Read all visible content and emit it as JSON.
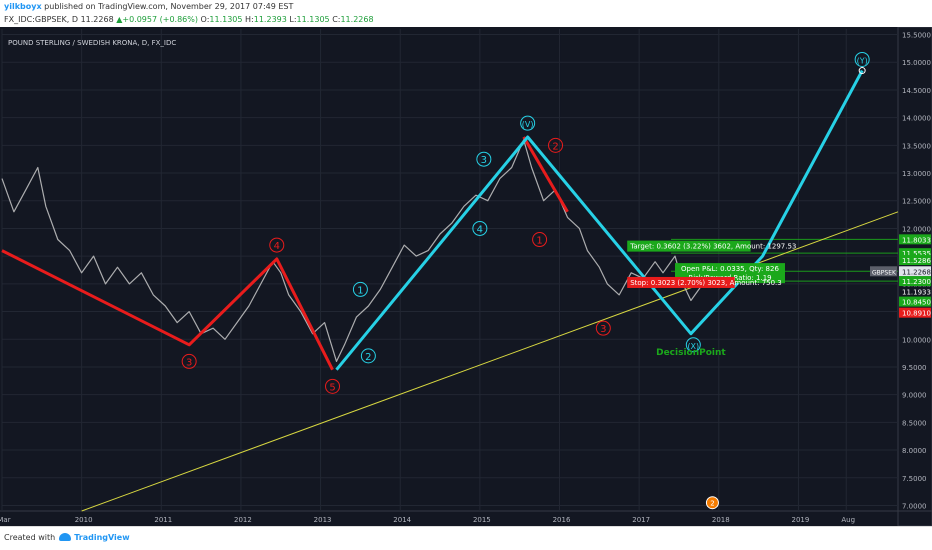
{
  "header": {
    "author": "yilkboyx",
    "published": "published on TradingView.com, November 29, 2017 07:49 EST",
    "symbol": "FX_IDC:GBPSEK, D",
    "last": "11.2268",
    "change": "+0.0957 (+0.86%)",
    "o_label": "O:",
    "o": "11.1305",
    "h_label": "H:",
    "h": "11.2393",
    "l_label": "L:",
    "l": "11.1305",
    "c_label": "C:",
    "c": "11.2268"
  },
  "footer": {
    "created_with": "Created with",
    "brand": "TradingView"
  },
  "colors": {
    "background": "#131722",
    "grid": "#222733",
    "price_line": "#c8c8c8",
    "cyan": "#27d1e6",
    "red": "#e81c1c",
    "trend": "#d7d741",
    "green": "#1ba81b"
  },
  "chart_data": {
    "type": "line",
    "title": "POUND STERLING / SWEDISH KRONA, D, FX_IDC",
    "ylim": [
      6.9,
      15.6
    ],
    "xlim": [
      2009.0,
      2020.25
    ],
    "y_ticks": [
      "15.5000",
      "15.0000",
      "14.5000",
      "14.0000",
      "13.5000",
      "13.0000",
      "12.5000",
      "12.0000",
      "11.5000",
      "11.0000",
      "10.5000",
      "10.0000",
      "9.5000",
      "9.0000",
      "8.5000",
      "8.0000",
      "7.5000",
      "7.0000"
    ],
    "x_ticks": [
      {
        "x": 2009.0,
        "label": "Mar"
      },
      {
        "x": 2010.0,
        "label": "2010"
      },
      {
        "x": 2011.0,
        "label": "2011"
      },
      {
        "x": 2012.0,
        "label": "2012"
      },
      {
        "x": 2013.0,
        "label": "2013"
      },
      {
        "x": 2014.0,
        "label": "2014"
      },
      {
        "x": 2015.0,
        "label": "2015"
      },
      {
        "x": 2016.0,
        "label": "2016"
      },
      {
        "x": 2017.0,
        "label": "2017"
      },
      {
        "x": 2018.0,
        "label": "2018"
      },
      {
        "x": 2019.0,
        "label": "2019"
      },
      {
        "x": 2019.6,
        "label": "Aug"
      }
    ],
    "price": [
      [
        2009.0,
        12.9
      ],
      [
        2009.15,
        12.3
      ],
      [
        2009.3,
        12.7
      ],
      [
        2009.45,
        13.1
      ],
      [
        2009.55,
        12.4
      ],
      [
        2009.7,
        11.8
      ],
      [
        2009.85,
        11.6
      ],
      [
        2010.0,
        11.2
      ],
      [
        2010.15,
        11.5
      ],
      [
        2010.3,
        11.0
      ],
      [
        2010.45,
        11.3
      ],
      [
        2010.6,
        11.0
      ],
      [
        2010.75,
        11.2
      ],
      [
        2010.9,
        10.8
      ],
      [
        2011.05,
        10.6
      ],
      [
        2011.2,
        10.3
      ],
      [
        2011.35,
        10.5
      ],
      [
        2011.5,
        10.1
      ],
      [
        2011.65,
        10.2
      ],
      [
        2011.8,
        10.0
      ],
      [
        2011.95,
        10.3
      ],
      [
        2012.1,
        10.6
      ],
      [
        2012.25,
        11.0
      ],
      [
        2012.4,
        11.4
      ],
      [
        2012.5,
        11.2
      ],
      [
        2012.6,
        10.8
      ],
      [
        2012.75,
        10.5
      ],
      [
        2012.9,
        10.1
      ],
      [
        2013.05,
        10.3
      ],
      [
        2013.2,
        9.6
      ],
      [
        2013.3,
        9.9
      ],
      [
        2013.45,
        10.4
      ],
      [
        2013.6,
        10.6
      ],
      [
        2013.75,
        10.9
      ],
      [
        2013.9,
        11.3
      ],
      [
        2014.05,
        11.7
      ],
      [
        2014.2,
        11.5
      ],
      [
        2014.35,
        11.6
      ],
      [
        2014.5,
        11.9
      ],
      [
        2014.65,
        12.1
      ],
      [
        2014.8,
        12.4
      ],
      [
        2014.95,
        12.6
      ],
      [
        2015.1,
        12.5
      ],
      [
        2015.25,
        12.9
      ],
      [
        2015.4,
        13.1
      ],
      [
        2015.55,
        13.6
      ],
      [
        2015.65,
        13.1
      ],
      [
        2015.8,
        12.5
      ],
      [
        2015.95,
        12.7
      ],
      [
        2016.1,
        12.2
      ],
      [
        2016.25,
        12.0
      ],
      [
        2016.35,
        11.6
      ],
      [
        2016.5,
        11.3
      ],
      [
        2016.6,
        11.0
      ],
      [
        2016.75,
        10.8
      ],
      [
        2016.9,
        11.2
      ],
      [
        2017.05,
        11.1
      ],
      [
        2017.2,
        11.4
      ],
      [
        2017.3,
        11.2
      ],
      [
        2017.45,
        11.5
      ],
      [
        2017.55,
        11.0
      ],
      [
        2017.65,
        10.7
      ],
      [
        2017.75,
        10.9
      ],
      [
        2017.9,
        11.22
      ]
    ],
    "wave_cyan": [
      [
        2013.2,
        9.45
      ],
      [
        2015.6,
        13.65
      ],
      [
        2017.65,
        10.1
      ],
      [
        2018.55,
        11.5
      ],
      [
        2019.8,
        14.85
      ]
    ],
    "wave_red_lines": [
      [
        2009.0,
        11.6
      ],
      [
        2011.35,
        9.9
      ],
      [
        2012.45,
        11.45
      ],
      [
        2013.15,
        9.45
      ]
    ],
    "wave_red_after": [
      [
        2015.55,
        13.65
      ],
      [
        2016.1,
        12.3
      ]
    ],
    "trend_line": [
      [
        2010.0,
        6.9
      ],
      [
        2020.25,
        12.3
      ]
    ],
    "waves": [
      {
        "label": "3",
        "x": 2011.35,
        "y": 9.6,
        "color": "red"
      },
      {
        "label": "4",
        "x": 2012.45,
        "y": 11.7,
        "color": "red"
      },
      {
        "label": "5",
        "x": 2013.15,
        "y": 9.15,
        "color": "red"
      },
      {
        "label": "1",
        "x": 2013.5,
        "y": 10.9,
        "color": "cyan"
      },
      {
        "label": "2",
        "x": 2013.6,
        "y": 9.7,
        "color": "cyan"
      },
      {
        "label": "3",
        "x": 2015.05,
        "y": 13.25,
        "color": "cyan"
      },
      {
        "label": "4",
        "x": 2015.0,
        "y": 12.0,
        "color": "cyan"
      },
      {
        "label": "(V)",
        "x": 2015.6,
        "y": 13.9,
        "color": "cyan"
      },
      {
        "label": "2",
        "x": 2015.95,
        "y": 13.5,
        "color": "red"
      },
      {
        "label": "1",
        "x": 2015.75,
        "y": 11.8,
        "color": "red"
      },
      {
        "label": "3",
        "x": 2016.55,
        "y": 10.2,
        "color": "red"
      },
      {
        "label": "(X)",
        "x": 2017.68,
        "y": 9.9,
        "color": "cyan"
      },
      {
        "label": "(Y)",
        "x": 2019.8,
        "y": 15.05,
        "color": "cyan"
      }
    ],
    "annotation": {
      "label": "DecisionPoint",
      "x": 2017.65,
      "y": 9.72
    },
    "target_box": {
      "text": "Target: 0.3602 (3.22%) 3602, Amount: 1297.53",
      "x": 2016.85,
      "y": 11.6,
      "x2": 2018.4
    },
    "pnl_box": {
      "text1": "Open P&L: 0.0335, Qty: 826",
      "text2": "Risk/Reward Ratio: 1.19",
      "x": 2017.45,
      "y": 11.23
    },
    "stop_box": {
      "text": "Stop: 0.3023 (2.70%) 3023, Amount: 750.3",
      "x": 2016.85,
      "y": 10.98,
      "x2": 2018.2
    },
    "axis_labels": [
      {
        "label": "11.8033",
        "y": 11.8033,
        "color": "green"
      },
      {
        "label": "11.5535",
        "y": 11.5535,
        "color": "green"
      },
      {
        "label": "11.5286",
        "y": 11.43,
        "color": "green"
      },
      {
        "label": "11.2268",
        "y": 11.2268,
        "color": "grey"
      },
      {
        "label": "11.2300",
        "y": 11.05,
        "color": "green"
      },
      {
        "label": "11.1933",
        "y": 10.86,
        "color": "plain"
      },
      {
        "label": "10.8450",
        "y": 10.68,
        "color": "green"
      },
      {
        "label": "10.8910",
        "y": 10.48,
        "color": "red"
      }
    ],
    "symbol_tag": "GBPSEK",
    "h_lines": [
      11.8033,
      11.5535,
      11.2268,
      11.05
    ],
    "events": [
      {
        "label": "2",
        "x": 2017.92,
        "y": 7.05
      }
    ]
  }
}
